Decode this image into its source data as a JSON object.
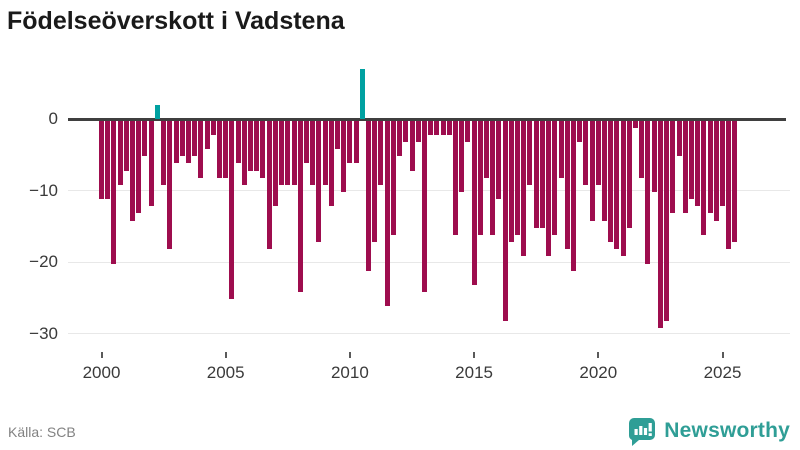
{
  "title": "Födelseöverskott i Vadstena",
  "source": "Källa: SCB",
  "brand": {
    "name": "Newsworthy",
    "color": "#2f9e96"
  },
  "chart_data": {
    "type": "bar",
    "title": "Födelseöverskott i Vadstena",
    "frequency": "quarterly",
    "start": "2000 Q1",
    "end": "2025 Q3",
    "values": [
      -11,
      -11,
      -20,
      -9,
      -7,
      -14,
      -13,
      -5,
      -12,
      2,
      -9,
      -18,
      -6,
      -5,
      -6,
      -5,
      -8,
      -4,
      -2,
      -8,
      -8,
      -25,
      -6,
      -9,
      -7,
      -7,
      -8,
      -18,
      -12,
      -9,
      -9,
      -9,
      -24,
      -6,
      -9,
      -17,
      -9,
      -12,
      -4,
      -10,
      -6,
      -6,
      7,
      -21,
      -17,
      -9,
      -26,
      -16,
      -5,
      -3,
      -7,
      -3,
      -24,
      -2,
      -2,
      -2,
      -2,
      -16,
      -10,
      -3,
      -23,
      -16,
      -8,
      -16,
      -11,
      -28,
      -17,
      -16,
      -19,
      -9,
      -15,
      -15,
      -19,
      -16,
      -8,
      -18,
      -21,
      -3,
      -9,
      -14,
      -9,
      -14,
      -17,
      -18,
      -19,
      -15,
      -1,
      -8,
      -20,
      -10,
      -29,
      -28,
      -13,
      -5,
      -13,
      -11,
      -12,
      -16,
      -13,
      -14,
      -12,
      -18,
      -17
    ],
    "x_ticks": [
      2000,
      2005,
      2010,
      2015,
      2020,
      2025
    ],
    "y_ticks": [
      0,
      -10,
      -20,
      -30
    ],
    "y_tick_labels": [
      "0",
      "−10",
      "−20",
      "−30"
    ],
    "ylim": [
      -32,
      8
    ],
    "grid": "horizontal",
    "legend": "none",
    "negative_color": "#9e0d4e",
    "positive_color": "#00a1a1"
  }
}
